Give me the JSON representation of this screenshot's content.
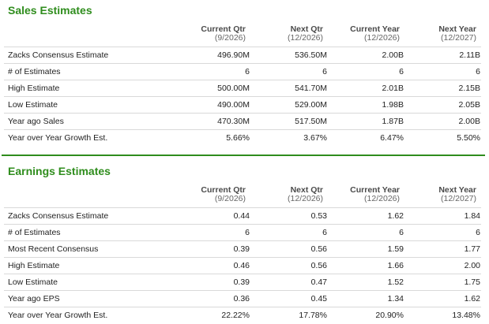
{
  "sales": {
    "title": "Sales Estimates",
    "columns": [
      {
        "l1": "Current Qtr",
        "l2": "(9/2026)"
      },
      {
        "l1": "Next Qtr",
        "l2": "(12/2026)"
      },
      {
        "l1": "Current Year",
        "l2": "(12/2026)"
      },
      {
        "l1": "Next Year",
        "l2": "(12/2027)"
      }
    ],
    "rows": [
      {
        "label": "Zacks Consensus Estimate",
        "values": [
          "496.90M",
          "536.50M",
          "2.00B",
          "2.11B"
        ]
      },
      {
        "label": "# of Estimates",
        "values": [
          "6",
          "6",
          "6",
          "6"
        ]
      },
      {
        "label": "High Estimate",
        "values": [
          "500.00M",
          "541.70M",
          "2.01B",
          "2.15B"
        ]
      },
      {
        "label": "Low Estimate",
        "values": [
          "490.00M",
          "529.00M",
          "1.98B",
          "2.05B"
        ]
      },
      {
        "label": "Year ago Sales",
        "values": [
          "470.30M",
          "517.50M",
          "1.87B",
          "2.00B"
        ]
      },
      {
        "label": "Year over Year Growth Est.",
        "values": [
          "5.66%",
          "3.67%",
          "6.47%",
          "5.50%"
        ]
      }
    ]
  },
  "earnings": {
    "title": "Earnings Estimates",
    "columns": [
      {
        "l1": "Current Qtr",
        "l2": "(9/2026)"
      },
      {
        "l1": "Next Qtr",
        "l2": "(12/2026)"
      },
      {
        "l1": "Current Year",
        "l2": "(12/2026)"
      },
      {
        "l1": "Next Year",
        "l2": "(12/2027)"
      }
    ],
    "rows": [
      {
        "label": "Zacks Consensus Estimate",
        "values": [
          "0.44",
          "0.53",
          "1.62",
          "1.84"
        ]
      },
      {
        "label": "# of Estimates",
        "values": [
          "6",
          "6",
          "6",
          "6"
        ]
      },
      {
        "label": "Most Recent Consensus",
        "values": [
          "0.39",
          "0.56",
          "1.59",
          "1.77"
        ]
      },
      {
        "label": "High Estimate",
        "values": [
          "0.46",
          "0.56",
          "1.66",
          "2.00"
        ]
      },
      {
        "label": "Low Estimate",
        "values": [
          "0.39",
          "0.47",
          "1.52",
          "1.75"
        ]
      },
      {
        "label": "Year ago EPS",
        "values": [
          "0.36",
          "0.45",
          "1.34",
          "1.62"
        ]
      },
      {
        "label": "Year over Year Growth Est.",
        "values": [
          "22.22%",
          "17.78%",
          "20.90%",
          "13.48%"
        ]
      }
    ]
  },
  "colors": {
    "accent": "#2f8d1d",
    "row_border": "#d9d9d9"
  }
}
